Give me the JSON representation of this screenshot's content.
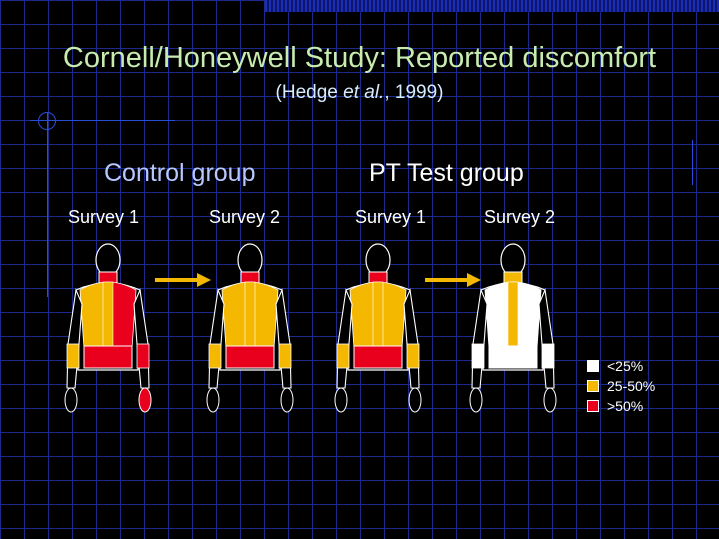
{
  "slide": {
    "title": "Cornell/Honeywell Study:  Reported discomfort",
    "citation": {
      "prefix": "(Hedge ",
      "italic": "et al.",
      "suffix": ", 1999)"
    }
  },
  "groups": [
    {
      "label": "Control group",
      "surveys": [
        "Survey 1",
        "Survey 2"
      ]
    },
    {
      "label": "PT Test group",
      "surveys": [
        "Survey 1",
        "Survey 2"
      ]
    }
  ],
  "colors": {
    "background": "#000000",
    "grid": "#1b2a8c",
    "low": "#ffffff",
    "mid": "#f5b800",
    "high": "#e8001c",
    "arrow": "#f5b800"
  },
  "figures": [
    {
      "group": "Control group",
      "survey": "Survey 1",
      "view": "back",
      "neck": "high",
      "upper_left": "mid",
      "upper_right": "high",
      "spine": "mid",
      "lower_back": "high",
      "left_arm": "mid",
      "right_arm": "high"
    },
    {
      "group": "Control group",
      "survey": "Survey 2",
      "view": "back",
      "neck": "high",
      "upper_left": "mid",
      "upper_right": "mid",
      "spine": "mid",
      "lower_back": "high",
      "left_arm": "mid",
      "right_arm": "mid"
    },
    {
      "group": "PT Test group",
      "survey": "Survey 1",
      "view": "back",
      "neck": "high",
      "upper_left": "mid",
      "upper_right": "mid",
      "spine": "mid",
      "lower_back": "high",
      "left_arm": "mid",
      "right_arm": "mid"
    },
    {
      "group": "PT Test group",
      "survey": "Survey 2",
      "view": "back",
      "neck": "mid",
      "upper_left": "low",
      "upper_right": "low",
      "spine": "mid",
      "lower_back": "low",
      "left_arm": "low",
      "right_arm": "low"
    }
  ],
  "legend": [
    {
      "label": "<25%",
      "color": "#ffffff"
    },
    {
      "label": "25-50%",
      "color": "#f5b800"
    },
    {
      "label": ">50%",
      "color": "#e8001c"
    }
  ]
}
